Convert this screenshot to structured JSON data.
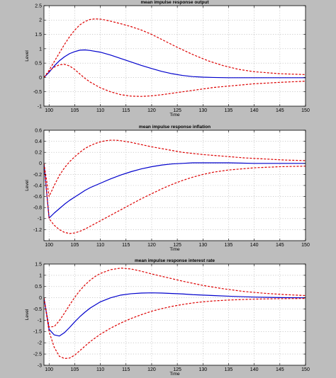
{
  "figure": {
    "background": "#bdbdbd",
    "plot_background": "#ffffff",
    "grid_color": "#b0b0b0"
  },
  "chart_data": [
    {
      "type": "line",
      "title": "mean impulse response output",
      "xlabel": "Time",
      "ylabel": "Level",
      "xlim": [
        99,
        150
      ],
      "ylim": [
        -1,
        2.5
      ],
      "xticks": [
        100,
        105,
        110,
        115,
        120,
        125,
        130,
        135,
        140,
        145,
        150
      ],
      "yticks": [
        -1,
        -0.5,
        0,
        0.5,
        1,
        1.5,
        2,
        2.5
      ],
      "ytick_labels": [
        "-1",
        "-0.5",
        "0",
        "0.5",
        "1",
        "1.5",
        "2",
        "2.5"
      ],
      "grid": true,
      "series": [
        {
          "color": "#0000cc",
          "style": "solid",
          "x": [
            99,
            100,
            101,
            102,
            103,
            104,
            105,
            106,
            107,
            108,
            110,
            112,
            114,
            116,
            118,
            120,
            122,
            124,
            126,
            128,
            130,
            132,
            135,
            140,
            145,
            150
          ],
          "y": [
            0.0,
            0.18,
            0.4,
            0.58,
            0.72,
            0.83,
            0.9,
            0.95,
            0.96,
            0.94,
            0.88,
            0.78,
            0.66,
            0.54,
            0.42,
            0.31,
            0.21,
            0.13,
            0.07,
            0.03,
            0.01,
            0.0,
            -0.01,
            -0.01,
            -0.01,
            -0.01
          ]
        },
        {
          "color": "#dd0000",
          "style": "dashed",
          "x": [
            99,
            100,
            101,
            102,
            103,
            104,
            105,
            106,
            107,
            108,
            109,
            110,
            111,
            112,
            114,
            116,
            118,
            120,
            122,
            125,
            128,
            131,
            134,
            137,
            140,
            145,
            150
          ],
          "y": [
            0.0,
            0.25,
            0.55,
            0.85,
            1.15,
            1.42,
            1.65,
            1.83,
            1.95,
            2.02,
            2.04,
            2.03,
            2.0,
            1.96,
            1.87,
            1.77,
            1.65,
            1.5,
            1.32,
            1.05,
            0.8,
            0.58,
            0.41,
            0.28,
            0.2,
            0.13,
            0.1
          ]
        },
        {
          "color": "#dd0000",
          "style": "dashed",
          "x": [
            99,
            100,
            101,
            102,
            103,
            104,
            105,
            106,
            107,
            108,
            110,
            112,
            114,
            116,
            118,
            120,
            122,
            124,
            126,
            128,
            130,
            132,
            135,
            140,
            145,
            150
          ],
          "y": [
            0.0,
            0.22,
            0.36,
            0.44,
            0.46,
            0.4,
            0.28,
            0.12,
            -0.03,
            -0.16,
            -0.36,
            -0.5,
            -0.6,
            -0.65,
            -0.66,
            -0.64,
            -0.6,
            -0.55,
            -0.5,
            -0.45,
            -0.4,
            -0.35,
            -0.3,
            -0.22,
            -0.17,
            -0.13
          ]
        }
      ]
    },
    {
      "type": "line",
      "title": "mean impulse response inflation",
      "xlabel": "Time",
      "ylabel": "Level",
      "xlim": [
        99,
        150
      ],
      "ylim": [
        -1.4,
        0.6
      ],
      "xticks": [
        100,
        105,
        110,
        115,
        120,
        125,
        130,
        135,
        140,
        145,
        150
      ],
      "yticks": [
        -1.4,
        -1.2,
        -1,
        -0.8,
        -0.6,
        -0.4,
        -0.2,
        0,
        0.2,
        0.4,
        0.6
      ],
      "ytick_labels": [
        "",
        "-1.2",
        "-1",
        "-0.8",
        "-0.6",
        "-0.4",
        "-0.2",
        "0",
        "0.2",
        "0.4",
        "0.6"
      ],
      "grid": true,
      "series": [
        {
          "color": "#0000cc",
          "style": "solid",
          "x": [
            99,
            100,
            101,
            102,
            103,
            104,
            105,
            106,
            107,
            108,
            110,
            112,
            114,
            116,
            118,
            120,
            122,
            124,
            126,
            128,
            130,
            132,
            135,
            140,
            145,
            150
          ],
          "y": [
            0.0,
            -0.99,
            -0.9,
            -0.82,
            -0.74,
            -0.67,
            -0.61,
            -0.55,
            -0.49,
            -0.44,
            -0.36,
            -0.28,
            -0.21,
            -0.15,
            -0.1,
            -0.06,
            -0.03,
            -0.01,
            0.0,
            0.01,
            0.01,
            0.01,
            0.01,
            0.0,
            0.0,
            0.0
          ]
        },
        {
          "color": "#dd0000",
          "style": "dashed",
          "x": [
            99,
            100,
            101,
            102,
            103,
            104,
            105,
            106,
            107,
            108,
            109,
            110,
            111,
            112,
            113,
            114,
            116,
            118,
            120,
            123,
            126,
            130,
            134,
            138,
            142,
            146,
            150
          ],
          "y": [
            0.0,
            -0.6,
            -0.4,
            -0.22,
            -0.08,
            0.03,
            0.12,
            0.2,
            0.27,
            0.32,
            0.36,
            0.39,
            0.41,
            0.42,
            0.42,
            0.41,
            0.38,
            0.34,
            0.3,
            0.25,
            0.2,
            0.16,
            0.13,
            0.1,
            0.08,
            0.06,
            0.05
          ]
        },
        {
          "color": "#dd0000",
          "style": "dashed",
          "x": [
            99,
            100,
            101,
            102,
            103,
            104,
            105,
            106,
            107,
            108,
            110,
            112,
            114,
            116,
            118,
            120,
            122,
            124,
            126,
            128,
            130,
            132,
            135,
            140,
            145,
            150
          ],
          "y": [
            0.0,
            -1.0,
            -1.12,
            -1.2,
            -1.25,
            -1.27,
            -1.26,
            -1.23,
            -1.19,
            -1.14,
            -1.04,
            -0.94,
            -0.84,
            -0.74,
            -0.64,
            -0.55,
            -0.46,
            -0.38,
            -0.31,
            -0.25,
            -0.2,
            -0.16,
            -0.12,
            -0.08,
            -0.06,
            -0.05
          ]
        }
      ]
    },
    {
      "type": "line",
      "title": "mean impulse response interest rate",
      "xlabel": "Time",
      "ylabel": "Level",
      "xlim": [
        99,
        150
      ],
      "ylim": [
        -3,
        1.5
      ],
      "xticks": [
        100,
        105,
        110,
        115,
        120,
        125,
        130,
        135,
        140,
        145,
        150
      ],
      "yticks": [
        -3,
        -2.5,
        -2,
        -1.5,
        -1,
        -0.5,
        0,
        0.5,
        1,
        1.5
      ],
      "ytick_labels": [
        "-3",
        "-2.5",
        "-2",
        "-1.5",
        "-1",
        "-0.5",
        "0",
        "0.5",
        "1",
        "1.5"
      ],
      "grid": true,
      "series": [
        {
          "color": "#0000cc",
          "style": "solid",
          "x": [
            99,
            100,
            101,
            102,
            103,
            104,
            105,
            106,
            107,
            108,
            110,
            112,
            114,
            116,
            118,
            120,
            122,
            124,
            126,
            128,
            130,
            132,
            135,
            140,
            145,
            150
          ],
          "y": [
            0.0,
            -1.4,
            -1.65,
            -1.7,
            -1.55,
            -1.32,
            -1.07,
            -0.84,
            -0.64,
            -0.46,
            -0.18,
            0.0,
            0.12,
            0.18,
            0.21,
            0.22,
            0.21,
            0.19,
            0.17,
            0.14,
            0.12,
            0.1,
            0.07,
            0.03,
            0.01,
            0.0
          ]
        },
        {
          "color": "#dd0000",
          "style": "dashed",
          "x": [
            99,
            100,
            101,
            102,
            103,
            104,
            105,
            106,
            107,
            108,
            109,
            110,
            112,
            114,
            116,
            118,
            120,
            123,
            126,
            130,
            134,
            138,
            142,
            146,
            150
          ],
          "y": [
            0.0,
            -1.3,
            -1.28,
            -1.02,
            -0.68,
            -0.32,
            0.02,
            0.32,
            0.57,
            0.78,
            0.95,
            1.08,
            1.25,
            1.32,
            1.28,
            1.18,
            1.06,
            0.9,
            0.74,
            0.55,
            0.4,
            0.28,
            0.2,
            0.14,
            0.1
          ]
        },
        {
          "color": "#dd0000",
          "style": "dashed",
          "x": [
            99,
            100,
            101,
            102,
            103,
            104,
            105,
            106,
            107,
            108,
            110,
            112,
            114,
            116,
            118,
            120,
            122,
            124,
            126,
            128,
            130,
            132,
            135,
            140,
            145,
            150
          ],
          "y": [
            0.0,
            -1.5,
            -2.2,
            -2.6,
            -2.7,
            -2.68,
            -2.55,
            -2.35,
            -2.15,
            -1.95,
            -1.62,
            -1.35,
            -1.12,
            -0.92,
            -0.75,
            -0.6,
            -0.48,
            -0.38,
            -0.3,
            -0.23,
            -0.18,
            -0.14,
            -0.1,
            -0.06,
            -0.04,
            -0.03
          ]
        }
      ]
    }
  ]
}
